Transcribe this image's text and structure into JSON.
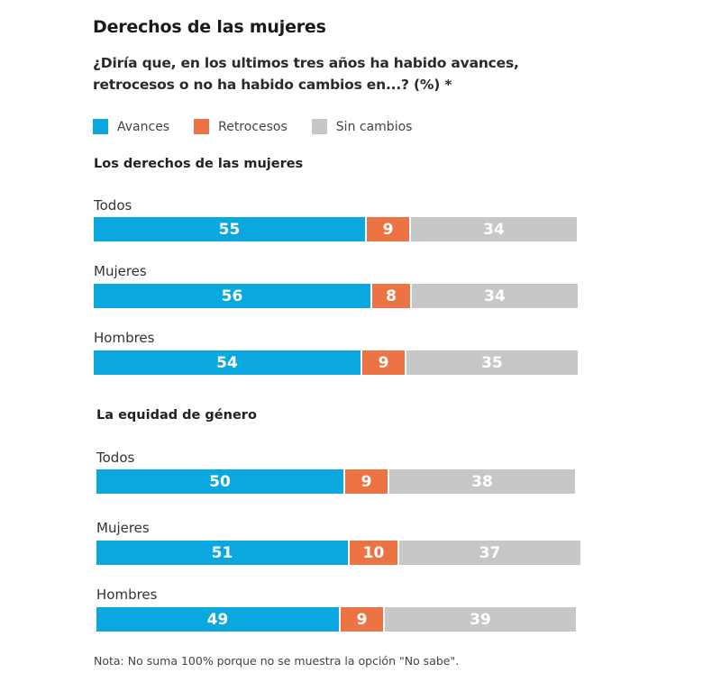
{
  "title": "Derechos de las mujeres",
  "subtitle": "¿Diría que, en los ultimos tres años ha habido avances, retrocesos o no ha habido cambios en...? (%) *",
  "note": "Nota: No suma 100% porque no se muestra la opción \"No sabe\".",
  "colors": {
    "avances": "#0aa8df",
    "retrocesos": "#ec7444",
    "sin_cambios": "#c6c7c9"
  },
  "legend": [
    {
      "label": "Avances",
      "key": "avances"
    },
    {
      "label": "Retrocesos",
      "key": "retrocesos"
    },
    {
      "label": "Sin cambios",
      "key": "sin_cambios"
    }
  ],
  "chart_data": {
    "type": "bar",
    "orientation": "horizontal-stacked",
    "title": "Derechos de las mujeres",
    "subtitle": "¿Diría que, en los ultimos tres años ha habido avances, retrocesos o no ha habido cambios en...? (%) *",
    "series_names": [
      "Avances",
      "Retrocesos",
      "Sin cambios"
    ],
    "unit": "%",
    "legend_position": "top-left",
    "groups": [
      {
        "name": "Los derechos de las mujeres",
        "rows": [
          {
            "label": "Todos",
            "values": [
              55,
              9,
              34
            ]
          },
          {
            "label": "Mujeres",
            "values": [
              56,
              8,
              34
            ]
          },
          {
            "label": "Hombres",
            "values": [
              54,
              9,
              35
            ]
          }
        ]
      },
      {
        "name": "La equidad de género",
        "rows": [
          {
            "label": "Todos",
            "values": [
              50,
              9,
              38
            ]
          },
          {
            "label": "Mujeres",
            "values": [
              51,
              10,
              37
            ]
          },
          {
            "label": "Hombres",
            "values": [
              49,
              9,
              39
            ]
          }
        ]
      }
    ]
  }
}
